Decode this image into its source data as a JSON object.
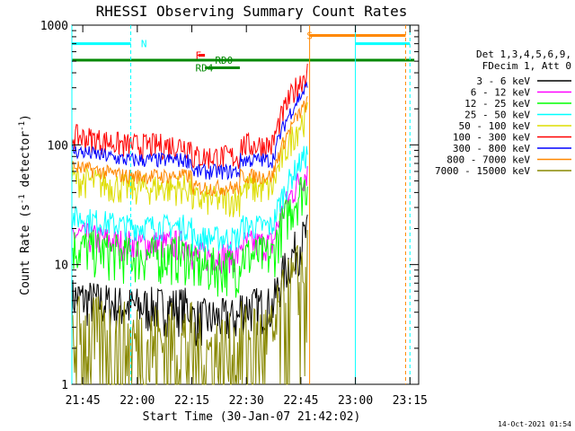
{
  "chart_data": {
    "type": "line",
    "title": "RHESSI Observing Summary Count Rates",
    "xlabel": "Start Time (30-Jan-07 21:42:02)",
    "ylabel_main": "Count Rate (s",
    "ylabel_sup1": "-1",
    "ylabel_mid": " detector",
    "ylabel_sup2": "-1",
    "ylabel_end": ")",
    "yscale": "log",
    "ylim": [
      1,
      1000
    ],
    "xlim_minutes": [
      21.7,
      23.29
    ],
    "x_ticks": [
      {
        "h": 21.75,
        "label": "21:45"
      },
      {
        "h": 22.0,
        "label": "22:00"
      },
      {
        "h": 22.25,
        "label": "22:15"
      },
      {
        "h": 22.5,
        "label": "22:30"
      },
      {
        "h": 22.75,
        "label": "22:45"
      },
      {
        "h": 23.0,
        "label": "23:00"
      },
      {
        "h": 23.25,
        "label": "23:15"
      }
    ],
    "y_ticks": [
      {
        "v": 1000,
        "label": "1000"
      },
      {
        "v": 100,
        "label": "100"
      },
      {
        "v": 10,
        "label": "10"
      },
      {
        "v": 1,
        "label": "1"
      }
    ],
    "legend_header": [
      "Det 1,3,4,5,6,9,",
      "FDecim 1, Att 0"
    ],
    "series": [
      {
        "name": "3 - 6 keV",
        "color": "#000000",
        "base": 4.5,
        "noise": 0.9
      },
      {
        "name": "6 - 12 keV",
        "color": "#ff00ff",
        "base": 15,
        "noise": 0.6
      },
      {
        "name": "12 - 25 keV",
        "color": "#00ff00",
        "base": 12,
        "noise": 0.9
      },
      {
        "name": "25 - 50 keV",
        "color": "#00ffff",
        "base": 21,
        "noise": 0.5
      },
      {
        "name": "50 - 100 keV",
        "color": "#dddd00",
        "base": 44,
        "noise": 0.6
      },
      {
        "name": "100 - 300 keV",
        "color": "#ff0000",
        "base": 100,
        "noise": 0.5
      },
      {
        "name": "300 - 800 keV",
        "color": "#0000ff",
        "base": 75,
        "noise": 0.3
      },
      {
        "name": "800 - 7000 keV",
        "color": "#ff8800",
        "base": 55,
        "noise": 0.3
      },
      {
        "name": "7000 - 15000 keV",
        "color": "#888800",
        "base": 2.2,
        "noise": 2.5
      }
    ],
    "state_bars": [
      {
        "label": "N",
        "color": "#00ffff",
        "y": 700,
        "x0": 21.7,
        "x1": 21.97,
        "label_x": 22.0
      },
      {
        "label": "N",
        "color": "#00ffff",
        "y": 700,
        "x0": 23.0,
        "x1": 23.25,
        "label_x": null
      },
      {
        "label": "S",
        "color": "#ff8800",
        "y": 820,
        "x0": 22.79,
        "x1": 23.23,
        "label_x": 22.76
      },
      {
        "label": "F",
        "color": "#ff0000",
        "y": 560,
        "x0": 22.28,
        "x1": 22.31,
        "label_x": 22.25
      },
      {
        "label": "RD0",
        "color": "#008800",
        "y": 510,
        "x0": 21.7,
        "x1": 23.27,
        "label_x": 22.34
      },
      {
        "label": "RD4",
        "color": "#008800",
        "y": 440,
        "x0": 22.31,
        "x1": 22.47,
        "label_x": 22.25
      }
    ],
    "grid": false,
    "legend_position": "right"
  },
  "footer": {
    "timestamp": "14-Oct-2021 01:54"
  },
  "colors": {
    "background": "#ffffff",
    "axis": "#000000"
  }
}
